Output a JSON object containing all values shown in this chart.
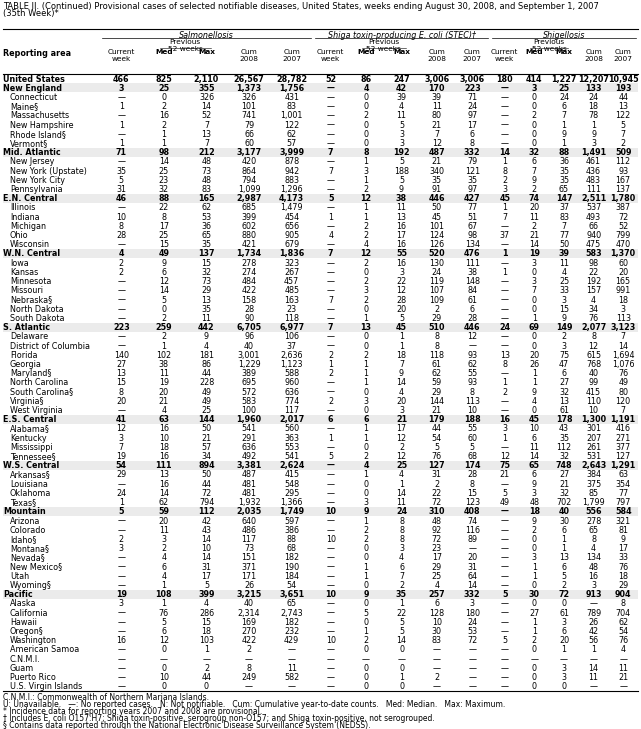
{
  "title_line1": "TABLE II. (Continued) Provisional cases of selected notifiable diseases, United States, weeks ending August 30, 2008, and September 1, 2007",
  "title_line2": "(35th Week)*",
  "rows": [
    [
      "United States",
      "466",
      "825",
      "2,110",
      "26,567",
      "28,782",
      "52",
      "86",
      "247",
      "3,006",
      "3,006",
      "180",
      "414",
      "1,227",
      "12,207",
      "10,945"
    ],
    [
      "New England",
      "3",
      "25",
      "355",
      "1,373",
      "1,756",
      "—",
      "4",
      "42",
      "170",
      "223",
      "—",
      "3",
      "25",
      "133",
      "193"
    ],
    [
      "Connecticut",
      "—",
      "0",
      "326",
      "326",
      "431",
      "—",
      "0",
      "39",
      "39",
      "71",
      "—",
      "0",
      "24",
      "24",
      "44"
    ],
    [
      "Maine§",
      "1",
      "2",
      "14",
      "101",
      "83",
      "—",
      "0",
      "4",
      "11",
      "24",
      "—",
      "0",
      "6",
      "18",
      "13"
    ],
    [
      "Massachusetts",
      "—",
      "16",
      "52",
      "741",
      "1,001",
      "—",
      "2",
      "11",
      "80",
      "97",
      "—",
      "2",
      "7",
      "78",
      "122"
    ],
    [
      "New Hampshire",
      "1",
      "2",
      "7",
      "79",
      "122",
      "—",
      "0",
      "5",
      "21",
      "17",
      "—",
      "0",
      "1",
      "1",
      "5"
    ],
    [
      "Rhode Island§",
      "—",
      "1",
      "13",
      "66",
      "62",
      "—",
      "0",
      "3",
      "7",
      "6",
      "—",
      "0",
      "9",
      "9",
      "7"
    ],
    [
      "Vermont§",
      "1",
      "1",
      "7",
      "60",
      "57",
      "—",
      "0",
      "3",
      "12",
      "8",
      "—",
      "0",
      "1",
      "3",
      "2"
    ],
    [
      "Mid. Atlantic",
      "71",
      "98",
      "212",
      "3,177",
      "3,999",
      "7",
      "8",
      "192",
      "487",
      "332",
      "14",
      "32",
      "88",
      "1,491",
      "509"
    ],
    [
      "New Jersey",
      "—",
      "14",
      "48",
      "420",
      "878",
      "—",
      "1",
      "5",
      "21",
      "79",
      "1",
      "6",
      "36",
      "461",
      "112"
    ],
    [
      "New York (Upstate)",
      "35",
      "25",
      "73",
      "864",
      "942",
      "7",
      "3",
      "188",
      "340",
      "121",
      "8",
      "7",
      "35",
      "436",
      "93"
    ],
    [
      "New York City",
      "5",
      "23",
      "48",
      "794",
      "883",
      "—",
      "1",
      "5",
      "35",
      "35",
      "2",
      "9",
      "35",
      "483",
      "167"
    ],
    [
      "Pennsylvania",
      "31",
      "32",
      "83",
      "1,099",
      "1,296",
      "—",
      "2",
      "9",
      "91",
      "97",
      "3",
      "2",
      "65",
      "111",
      "137"
    ],
    [
      "E.N. Central",
      "46",
      "88",
      "165",
      "2,987",
      "4,173",
      "5",
      "12",
      "38",
      "446",
      "427",
      "45",
      "74",
      "147",
      "2,511",
      "1,780"
    ],
    [
      "Illinois",
      "—",
      "22",
      "62",
      "685",
      "1,479",
      "—",
      "1",
      "11",
      "50",
      "77",
      "1",
      "20",
      "37",
      "537",
      "387"
    ],
    [
      "Indiana",
      "10",
      "8",
      "53",
      "399",
      "454",
      "1",
      "1",
      "13",
      "45",
      "51",
      "7",
      "11",
      "83",
      "493",
      "72"
    ],
    [
      "Michigan",
      "8",
      "17",
      "36",
      "602",
      "656",
      "—",
      "2",
      "16",
      "101",
      "67",
      "—",
      "2",
      "7",
      "66",
      "52"
    ],
    [
      "Ohio",
      "28",
      "25",
      "65",
      "880",
      "905",
      "4",
      "2",
      "17",
      "124",
      "98",
      "37",
      "21",
      "77",
      "940",
      "799"
    ],
    [
      "Wisconsin",
      "—",
      "15",
      "35",
      "421",
      "679",
      "—",
      "4",
      "16",
      "126",
      "134",
      "—",
      "14",
      "50",
      "475",
      "470"
    ],
    [
      "W.N. Central",
      "4",
      "49",
      "137",
      "1,734",
      "1,836",
      "7",
      "12",
      "55",
      "520",
      "476",
      "1",
      "19",
      "39",
      "583",
      "1,370"
    ],
    [
      "Iowa",
      "2",
      "9",
      "15",
      "278",
      "323",
      "—",
      "2",
      "16",
      "130",
      "111",
      "—",
      "3",
      "11",
      "98",
      "60"
    ],
    [
      "Kansas",
      "2",
      "6",
      "32",
      "274",
      "267",
      "—",
      "0",
      "3",
      "24",
      "38",
      "1",
      "0",
      "4",
      "22",
      "20"
    ],
    [
      "Minnesota",
      "—",
      "12",
      "73",
      "484",
      "457",
      "—",
      "2",
      "22",
      "119",
      "148",
      "—",
      "3",
      "25",
      "192",
      "165"
    ],
    [
      "Missouri",
      "—",
      "14",
      "29",
      "422",
      "485",
      "—",
      "3",
      "12",
      "107",
      "84",
      "—",
      "7",
      "33",
      "157",
      "991"
    ],
    [
      "Nebraska§",
      "—",
      "5",
      "13",
      "158",
      "163",
      "7",
      "2",
      "28",
      "109",
      "61",
      "—",
      "0",
      "3",
      "4",
      "18"
    ],
    [
      "North Dakota",
      "—",
      "0",
      "35",
      "28",
      "23",
      "—",
      "0",
      "20",
      "2",
      "6",
      "—",
      "0",
      "15",
      "34",
      "3"
    ],
    [
      "South Dakota",
      "—",
      "2",
      "11",
      "90",
      "118",
      "—",
      "1",
      "5",
      "29",
      "28",
      "—",
      "1",
      "9",
      "76",
      "113"
    ],
    [
      "S. Atlantic",
      "223",
      "259",
      "442",
      "6,705",
      "6,977",
      "7",
      "13",
      "45",
      "510",
      "446",
      "24",
      "69",
      "149",
      "2,077",
      "3,123"
    ],
    [
      "Delaware",
      "—",
      "2",
      "9",
      "96",
      "106",
      "—",
      "0",
      "1",
      "8",
      "12",
      "—",
      "0",
      "2",
      "8",
      "7"
    ],
    [
      "District of Columbia",
      "—",
      "1",
      "4",
      "40",
      "37",
      "—",
      "0",
      "1",
      "8",
      "—",
      "—",
      "0",
      "3",
      "12",
      "14"
    ],
    [
      "Florida",
      "140",
      "102",
      "181",
      "3,001",
      "2,636",
      "2",
      "2",
      "18",
      "118",
      "93",
      "13",
      "20",
      "75",
      "615",
      "1,694"
    ],
    [
      "Georgia",
      "27",
      "38",
      "86",
      "1,229",
      "1,123",
      "1",
      "1",
      "7",
      "61",
      "62",
      "8",
      "26",
      "47",
      "768",
      "1,076"
    ],
    [
      "Maryland§",
      "13",
      "11",
      "44",
      "389",
      "588",
      "2",
      "1",
      "9",
      "62",
      "55",
      "—",
      "1",
      "6",
      "40",
      "76"
    ],
    [
      "North Carolina",
      "15",
      "19",
      "228",
      "695",
      "960",
      "—",
      "1",
      "14",
      "59",
      "93",
      "1",
      "1",
      "27",
      "99",
      "49"
    ],
    [
      "South Carolina§",
      "8",
      "20",
      "49",
      "572",
      "636",
      "—",
      "0",
      "4",
      "29",
      "8",
      "2",
      "9",
      "32",
      "415",
      "80"
    ],
    [
      "Virginia§",
      "20",
      "21",
      "49",
      "583",
      "774",
      "2",
      "3",
      "20",
      "144",
      "113",
      "—",
      "4",
      "13",
      "110",
      "120"
    ],
    [
      "West Virginia",
      "—",
      "4",
      "25",
      "100",
      "117",
      "—",
      "0",
      "3",
      "21",
      "10",
      "—",
      "0",
      "61",
      "10",
      "7"
    ],
    [
      "E.S. Central",
      "41",
      "63",
      "144",
      "1,960",
      "2,017",
      "6",
      "6",
      "21",
      "179",
      "188",
      "16",
      "45",
      "178",
      "1,300",
      "1,191"
    ],
    [
      "Alabama§",
      "12",
      "16",
      "50",
      "541",
      "560",
      "—",
      "1",
      "17",
      "44",
      "55",
      "3",
      "10",
      "43",
      "301",
      "416"
    ],
    [
      "Kentucky",
      "3",
      "10",
      "21",
      "291",
      "363",
      "1",
      "1",
      "12",
      "54",
      "60",
      "1",
      "6",
      "35",
      "207",
      "271"
    ],
    [
      "Mississippi",
      "7",
      "18",
      "57",
      "636",
      "553",
      "—",
      "0",
      "2",
      "5",
      "5",
      "—",
      "11",
      "112",
      "261",
      "377"
    ],
    [
      "Tennessee§",
      "19",
      "16",
      "34",
      "492",
      "541",
      "5",
      "2",
      "12",
      "76",
      "68",
      "12",
      "14",
      "32",
      "531",
      "127"
    ],
    [
      "W.S. Central",
      "54",
      "111",
      "894",
      "3,381",
      "2,624",
      "—",
      "4",
      "25",
      "127",
      "174",
      "75",
      "65",
      "748",
      "2,643",
      "1,291"
    ],
    [
      "Arkansas§",
      "29",
      "13",
      "50",
      "487",
      "415",
      "—",
      "1",
      "4",
      "31",
      "28",
      "21",
      "6",
      "27",
      "384",
      "63"
    ],
    [
      "Louisiana",
      "—",
      "16",
      "44",
      "481",
      "548",
      "—",
      "0",
      "1",
      "2",
      "8",
      "—",
      "9",
      "21",
      "375",
      "354"
    ],
    [
      "Oklahoma",
      "24",
      "14",
      "72",
      "481",
      "295",
      "—",
      "0",
      "14",
      "22",
      "15",
      "5",
      "3",
      "32",
      "85",
      "77"
    ],
    [
      "Texas§",
      "1",
      "62",
      "794",
      "1,932",
      "1,366",
      "—",
      "3",
      "11",
      "72",
      "123",
      "49",
      "48",
      "702",
      "1,799",
      "797"
    ],
    [
      "Mountain",
      "5",
      "59",
      "112",
      "2,035",
      "1,749",
      "10",
      "9",
      "24",
      "310",
      "408",
      "—",
      "18",
      "40",
      "556",
      "584"
    ],
    [
      "Arizona",
      "—",
      "20",
      "42",
      "640",
      "597",
      "—",
      "1",
      "8",
      "48",
      "74",
      "—",
      "9",
      "30",
      "278",
      "321"
    ],
    [
      "Colorado",
      "—",
      "11",
      "43",
      "486",
      "386",
      "—",
      "2",
      "8",
      "92",
      "116",
      "—",
      "2",
      "6",
      "65",
      "81"
    ],
    [
      "Idaho§",
      "2",
      "3",
      "14",
      "117",
      "88",
      "10",
      "2",
      "8",
      "72",
      "89",
      "—",
      "0",
      "1",
      "8",
      "9"
    ],
    [
      "Montana§",
      "3",
      "2",
      "10",
      "73",
      "68",
      "—",
      "0",
      "3",
      "23",
      "—",
      "—",
      "0",
      "1",
      "4",
      "17"
    ],
    [
      "Nevada§",
      "—",
      "4",
      "14",
      "151",
      "182",
      "—",
      "0",
      "4",
      "17",
      "20",
      "—",
      "3",
      "13",
      "134",
      "33"
    ],
    [
      "New Mexico§",
      "—",
      "6",
      "31",
      "371",
      "190",
      "—",
      "1",
      "6",
      "29",
      "31",
      "—",
      "1",
      "6",
      "48",
      "76"
    ],
    [
      "Utah",
      "—",
      "4",
      "17",
      "171",
      "184",
      "—",
      "1",
      "7",
      "25",
      "64",
      "—",
      "1",
      "5",
      "16",
      "18"
    ],
    [
      "Wyoming§",
      "—",
      "1",
      "5",
      "26",
      "54",
      "—",
      "0",
      "2",
      "4",
      "14",
      "—",
      "0",
      "2",
      "3",
      "29"
    ],
    [
      "Pacific",
      "19",
      "108",
      "399",
      "3,215",
      "3,651",
      "10",
      "9",
      "35",
      "257",
      "332",
      "5",
      "30",
      "72",
      "913",
      "904"
    ],
    [
      "Alaska",
      "3",
      "1",
      "4",
      "40",
      "65",
      "—",
      "0",
      "1",
      "6",
      "3",
      "—",
      "0",
      "0",
      "—",
      "8"
    ],
    [
      "California",
      "—",
      "76",
      "286",
      "2,314",
      "2,743",
      "—",
      "5",
      "22",
      "128",
      "180",
      "—",
      "27",
      "61",
      "789",
      "704"
    ],
    [
      "Hawaii",
      "—",
      "5",
      "15",
      "169",
      "182",
      "—",
      "0",
      "5",
      "10",
      "24",
      "—",
      "1",
      "3",
      "26",
      "62"
    ],
    [
      "Oregon§",
      "—",
      "6",
      "18",
      "270",
      "232",
      "—",
      "1",
      "5",
      "30",
      "53",
      "—",
      "1",
      "6",
      "42",
      "54"
    ],
    [
      "Washington",
      "16",
      "12",
      "103",
      "422",
      "429",
      "10",
      "2",
      "14",
      "83",
      "72",
      "5",
      "2",
      "20",
      "56",
      "76"
    ],
    [
      "American Samoa",
      "—",
      "0",
      "1",
      "2",
      "—",
      "—",
      "0",
      "0",
      "—",
      "—",
      "—",
      "0",
      "1",
      "1",
      "4"
    ],
    [
      "C.N.M.I.",
      "—",
      "—",
      "—",
      "—",
      "—",
      "—",
      "—",
      "—",
      "—",
      "—",
      "—",
      "—",
      "—",
      "—",
      "—"
    ],
    [
      "Guam",
      "—",
      "0",
      "2",
      "8",
      "11",
      "—",
      "0",
      "0",
      "—",
      "—",
      "—",
      "0",
      "3",
      "14",
      "11"
    ],
    [
      "Puerto Rico",
      "—",
      "10",
      "44",
      "249",
      "582",
      "—",
      "0",
      "1",
      "2",
      "—",
      "—",
      "0",
      "3",
      "11",
      "21"
    ],
    [
      "U.S. Virgin Islands",
      "—",
      "0",
      "0",
      "—",
      "—",
      "—",
      "0",
      "0",
      "—",
      "—",
      "—",
      "0",
      "0",
      "—",
      "—"
    ]
  ],
  "section_rows": [
    0,
    1,
    8,
    13,
    19,
    27,
    37,
    42,
    47,
    56
  ],
  "footnotes": [
    "C.N.M.I.: Commonwealth of Northern Mariana Islands.",
    "U: Unavailable.   —: No reported cases.   N: Not notifiable.   Cum: Cumulative year-to-date counts.   Med: Median.   Max: Maximum.",
    "* Incidence data for reporting years 2007 and 2008 are provisional.",
    "† Includes E. coli O157:H7; Shiga toxin-positive, serogroup non-O157; and Shiga toxin-positive, not serogrouped.",
    "§ Contains data reported through the National Electronic Disease Surveillance System (NEDSS)."
  ]
}
